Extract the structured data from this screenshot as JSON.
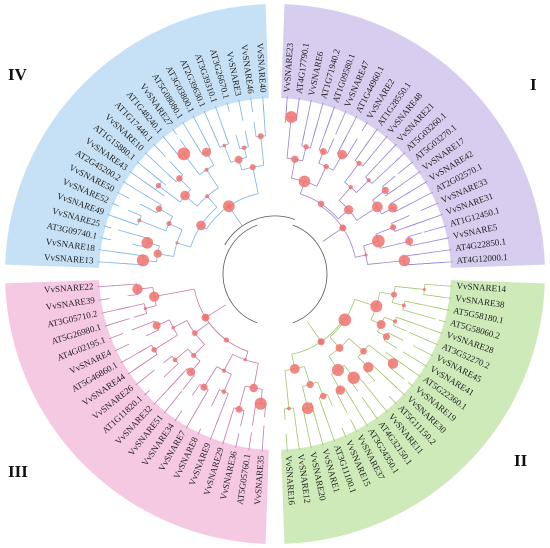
{
  "groups": [
    {
      "id": "I",
      "label": "I",
      "color": "#d7cdee",
      "stroke": "#9b84d0",
      "leaves": [
        "VvSNARE23",
        "AT4G17790.1",
        "VvSNARE6",
        "AT1G71940.2",
        "AT1G09580.1",
        "VvSNARE47",
        "AT1G44960.1",
        "VvSNARE2",
        "AT1G28550.1",
        "VvSNARE48",
        "VvSNARE21",
        "AT5G03260.1",
        "AT5G03270.1",
        "VvSNARE17",
        "VvSNARE42",
        "AT2G02570.1",
        "VvSNARE33",
        "VvSNARE31",
        "AT1G12450.1",
        "VvSNARE5",
        "AT4G22850.1",
        "AT4G12000.1"
      ]
    },
    {
      "id": "II",
      "label": "II",
      "color": "#cdeab8",
      "stroke": "#a6c470",
      "leaves": [
        "VvSNARE14",
        "VvSNARE38",
        "AT5G58180.1",
        "AT5G58060.2",
        "VvSNARE28",
        "AT3G52270.2",
        "VvSNARE45",
        "VvSNARE41",
        "AT5G22360.1",
        "VvSNARE19",
        "VvSNARE30",
        "AT5G11150.2",
        "VvSNARE11",
        "AT4G32150.1",
        "AT3G24350.1",
        "VvSNARE37",
        "VvSNARE15",
        "AT3G11100.1",
        "VvSNARE1",
        "VvSNARE20",
        "VvSNARE12",
        "VvSNARE16"
      ]
    },
    {
      "id": "III",
      "label": "III",
      "color": "#f6c9e2",
      "stroke": "#c27bab",
      "leaves": [
        "VvSNARE35",
        "AT5G05760.1",
        "VvSNARE36",
        "VvSNARE29",
        "VvSNARE9",
        "VvSNARE8",
        "VvSNARE7",
        "VvSNARE34",
        "VvSNARE51",
        "VvSNARE32",
        "AT1G11820.1",
        "VvSNARE26",
        "VvSNARE44",
        "AT5G46860.1",
        "VvSNARE4",
        "AT4G02195.1",
        "AT5G26980.1",
        "AT3G05710.2",
        "VvSNARE39",
        "VvSNARE22"
      ]
    },
    {
      "id": "IV",
      "label": "IV",
      "color": "#c6e1f6",
      "stroke": "#7fb3df",
      "leaves": [
        "VvSNARE13",
        "VvSNARE18",
        "AT3G09740.1",
        "VvSNARE25",
        "VvSNARE49",
        "VvSNARE52",
        "VvSNARE50",
        "AT2G45200.2",
        "VvSNARE43",
        "AT1G15880.1",
        "VvSNARE10",
        "AT1G17440.1",
        "AT1G48240.1",
        "VvSNARE27",
        "AT5G08080.1",
        "AT3G03800.1",
        "AT2G39630.1",
        "AT3G39310.1",
        "AT3G26670.1",
        "VvSNARE3",
        "VvSNARE46",
        "VvSNARE40"
      ]
    }
  ]
}
